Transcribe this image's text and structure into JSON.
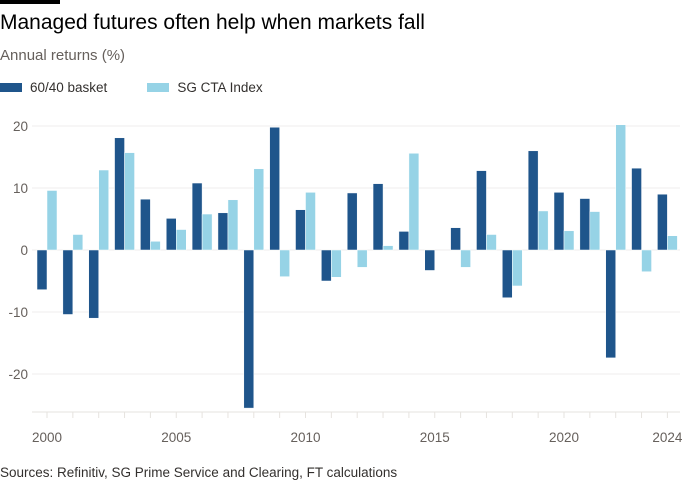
{
  "title": "Managed futures often help when markets fall",
  "subtitle": "Annual returns (%)",
  "source": "Sources: Refinitiv, SG Prime Service and Clearing, FT calculations",
  "colors": {
    "series1": "#1f558b",
    "series2": "#96d3e6",
    "grid": "#efeeec",
    "axis": "#e6e3df"
  },
  "chart_data": {
    "type": "bar",
    "title": "Managed futures often help when markets fall",
    "ylabel": "Annual returns (%)",
    "categories": [
      2000,
      2001,
      2002,
      2003,
      2004,
      2005,
      2006,
      2007,
      2008,
      2009,
      2010,
      2011,
      2012,
      2013,
      2014,
      2015,
      2016,
      2017,
      2018,
      2019,
      2020,
      2021,
      2022,
      2023,
      2024
    ],
    "series": [
      {
        "name": "60/40 basket",
        "values": [
          -6.4,
          -10.4,
          -11.0,
          18.1,
          8.2,
          5.1,
          10.8,
          6.0,
          -25.5,
          19.8,
          6.5,
          -5.0,
          9.2,
          10.7,
          3.0,
          -3.3,
          3.6,
          12.8,
          -7.7,
          16.0,
          9.3,
          8.3,
          -17.4,
          13.2,
          9.0
        ]
      },
      {
        "name": "SG CTA Index",
        "values": [
          9.6,
          2.5,
          12.9,
          15.7,
          1.4,
          3.3,
          5.8,
          8.1,
          13.1,
          -4.3,
          9.3,
          -4.4,
          -2.8,
          0.7,
          15.6,
          0.0,
          -2.8,
          2.5,
          -5.8,
          6.3,
          3.1,
          6.2,
          20.2,
          -3.5,
          2.3
        ]
      }
    ],
    "yticks": [
      20,
      10,
      0,
      -10,
      -20
    ],
    "xtick_labels": [
      "2000",
      "2005",
      "2010",
      "2015",
      "2020",
      "2024"
    ],
    "ylim": [
      -26,
      21
    ],
    "grid": true,
    "legend_position": "top-left"
  }
}
